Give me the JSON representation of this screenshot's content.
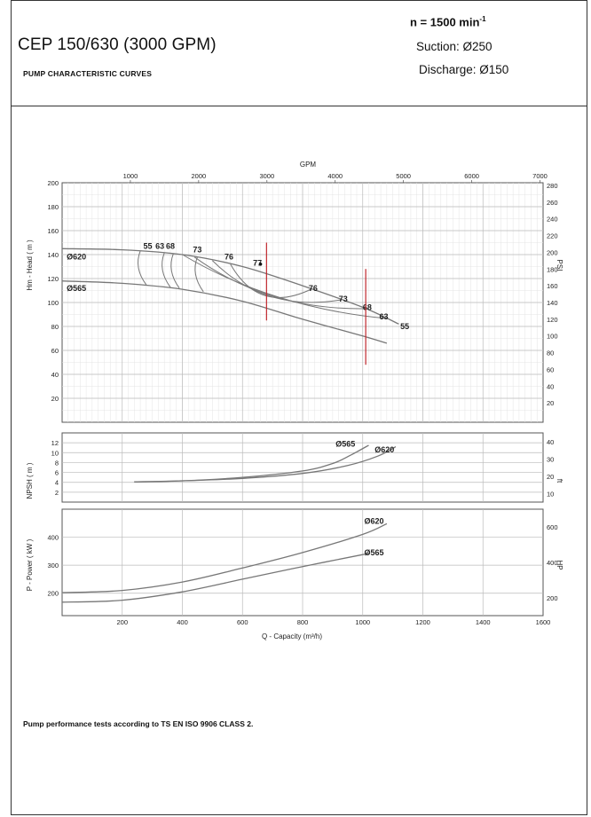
{
  "header": {
    "model": "CEP 150/630   (3000 GPM)",
    "subtitle": "PUMP CHARACTERISTIC CURVES",
    "speed_text": "n = 1500 min",
    "speed_exp": "-1",
    "suction": "Suction: Ø250",
    "discharge": "Discharge: Ø150"
  },
  "footer": {
    "note": "Pump performance tests according to TS EN ISO 9906 CLASS 2."
  },
  "colors": {
    "curve": "#777777",
    "grid": "#bbbbbb",
    "marker": "#c0272d",
    "frame": "#555555"
  },
  "chart_data": [
    {
      "type": "line",
      "panel": "head",
      "x_axis_bottom": {
        "label": "Q -  Capacity (m³/h)",
        "range": [
          0,
          1600
        ],
        "ticks": [
          200,
          400,
          600,
          800,
          1000,
          1200,
          1400,
          1600
        ]
      },
      "x_axis_top": {
        "label": "GPM",
        "ticks": [
          1000,
          2000,
          3000,
          4000,
          5000,
          6000,
          7000
        ]
      },
      "ylabel": "Hm -  Head ( m )",
      "ylim": [
        0,
        200
      ],
      "yticks": [
        20,
        40,
        60,
        80,
        100,
        120,
        140,
        160,
        180,
        200
      ],
      "ylabel_right": "PSI",
      "yticks_right": [
        20,
        40,
        60,
        80,
        100,
        120,
        140,
        160,
        180,
        200,
        220,
        240,
        260,
        280
      ],
      "grid": true,
      "series": [
        {
          "name": "Ø620",
          "x": [
            0,
            200,
            400,
            600,
            800,
            1000,
            1120
          ],
          "y": [
            145,
            144,
            140,
            130,
            114,
            96,
            82
          ]
        },
        {
          "name": "Ø565",
          "x": [
            0,
            200,
            400,
            600,
            800,
            1000,
            1080
          ],
          "y": [
            118,
            116,
            111,
            101,
            86,
            72,
            66
          ]
        }
      ],
      "efficiency_labels": [
        {
          "text": "55",
          "x": 285,
          "y": 147
        },
        {
          "text": "63",
          "x": 325,
          "y": 147
        },
        {
          "text": "68",
          "x": 360,
          "y": 147
        },
        {
          "text": "73",
          "x": 450,
          "y": 144
        },
        {
          "text": "76",
          "x": 555,
          "y": 138
        },
        {
          "text": "77",
          "x": 650,
          "y": 133
        },
        {
          "text": "76",
          "x": 835,
          "y": 112
        },
        {
          "text": "73",
          "x": 935,
          "y": 103
        },
        {
          "text": "68",
          "x": 1015,
          "y": 96
        },
        {
          "text": "63",
          "x": 1070,
          "y": 88
        },
        {
          "text": "55",
          "x": 1140,
          "y": 80
        }
      ],
      "series_labels": [
        {
          "text": "Ø620",
          "x": 15,
          "y": 138
        },
        {
          "text": "Ø565",
          "x": 15,
          "y": 112
        }
      ],
      "operating_limits_q": [
        680,
        1010
      ]
    },
    {
      "type": "line",
      "panel": "npsh",
      "ylabel": "NPSH ( m )",
      "ylim": [
        0,
        14
      ],
      "yticks": [
        2,
        4,
        6,
        8,
        10,
        12
      ],
      "ylabel_right": "ft",
      "yticks_right": [
        10,
        20,
        30,
        40
      ],
      "series": [
        {
          "name": "Ø565",
          "x": [
            240,
            400,
            600,
            800,
            900,
            960,
            1020
          ],
          "y": [
            4.1,
            4.3,
            5,
            6.3,
            7.8,
            9.5,
            11.5
          ]
        },
        {
          "name": "Ø620",
          "x": [
            240,
            400,
            600,
            800,
            950,
            1050,
            1110
          ],
          "y": [
            4.1,
            4.3,
            4.8,
            5.8,
            7.4,
            9.3,
            11.2
          ]
        }
      ],
      "series_labels": [
        {
          "text": "Ø565",
          "x": 910,
          "y": 11.8
        },
        {
          "text": "Ø620",
          "x": 1040,
          "y": 10.6
        }
      ]
    },
    {
      "type": "line",
      "panel": "power",
      "ylabel": "P -  Power ( kW )",
      "ylim": [
        120,
        500
      ],
      "yticks": [
        200,
        300,
        400
      ],
      "ylabel_right": "HP",
      "yticks_right": [
        200,
        400,
        600
      ],
      "series": [
        {
          "name": "Ø620",
          "x": [
            0,
            200,
            400,
            600,
            800,
            1000,
            1080
          ],
          "y": [
            202,
            210,
            240,
            290,
            345,
            410,
            448
          ]
        },
        {
          "name": "Ø565",
          "x": [
            0,
            200,
            400,
            600,
            800,
            1000,
            1010
          ],
          "y": [
            168,
            175,
            205,
            250,
            295,
            338,
            342
          ]
        }
      ],
      "series_labels": [
        {
          "text": "Ø620",
          "x": 1005,
          "y": 458
        },
        {
          "text": "Ø565",
          "x": 1005,
          "y": 345
        }
      ]
    }
  ]
}
